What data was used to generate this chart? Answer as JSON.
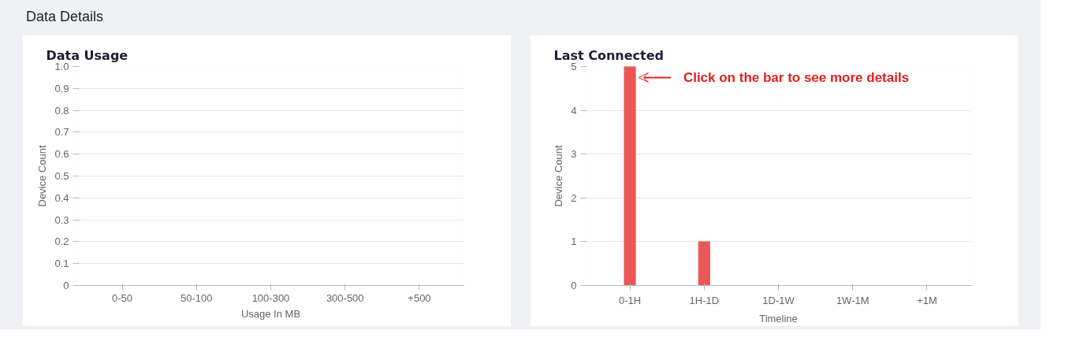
{
  "chart_data": [
    {
      "type": "bar",
      "title": "Data Usage",
      "annotations": [
        "Data Details"
      ],
      "xlabel": "Usage In MB",
      "ylabel": "Device Count",
      "categories": [
        "0-50",
        "50-100",
        "100-300",
        "300-500",
        "+500"
      ],
      "values": [
        0,
        0,
        0,
        0,
        0
      ],
      "color": "#eb5757",
      "ylim": [
        0,
        1
      ],
      "yticks": [
        0,
        0.1,
        0.2,
        0.3,
        0.4,
        0.5,
        0.6,
        0.7,
        0.8,
        0.9,
        {
          "value": 1,
          "label": "1.0"
        }
      ],
      "grid": "y"
    },
    {
      "type": "bar",
      "title": "Last Connected",
      "xlabel": "Timeline",
      "ylabel": "Device Count",
      "categories": [
        "0-1H",
        "1H-1D",
        "1D-1W",
        "1W-1M",
        "+1M"
      ],
      "values": [
        5,
        1,
        0,
        0,
        0
      ],
      "color": "#eb5757",
      "ylim": [
        0,
        5
      ],
      "yticks": [
        0,
        1,
        2,
        3,
        4,
        5
      ],
      "grid": "y",
      "annotations": [
        "Click on the bar to see more details"
      ]
    }
  ]
}
